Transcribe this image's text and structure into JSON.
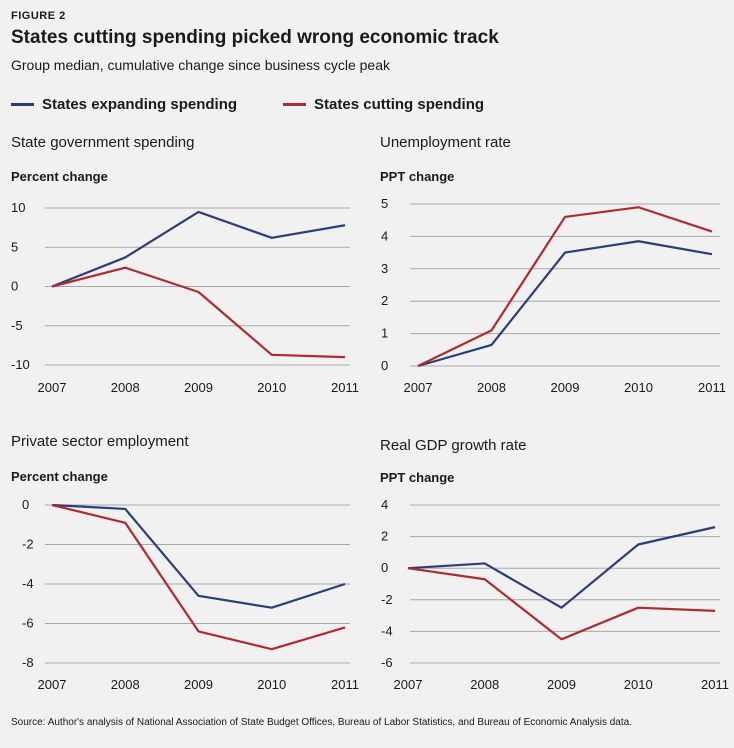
{
  "header": {
    "figure_label": "FIGURE 2",
    "title": "States cutting spending picked wrong economic track",
    "subtitle": "Group median, cumulative change since business cycle peak"
  },
  "legend": [
    {
      "label": "States expanding spending",
      "color": "#2b3e7a"
    },
    {
      "label": "States cutting spending",
      "color": "#b02a30"
    }
  ],
  "colors": {
    "expanding": "#2b3e7a",
    "cutting": "#b02a30",
    "grid": "#a9a9a9"
  },
  "source": "Source: Author's analysis of National Association of State Budget Offices, Bureau of Labor Statistics, and Bureau of Economic Analysis data.",
  "chart_data": [
    {
      "type": "line",
      "title": "State government spending",
      "ylabel": "Percent change",
      "categories": [
        "2007",
        "2008",
        "2009",
        "2010",
        "2011"
      ],
      "ylim": [
        -10,
        10
      ],
      "yticks": [
        "10",
        "5",
        "0",
        "-5",
        "-10"
      ],
      "series": [
        {
          "name": "States expanding spending",
          "values": [
            0,
            3.7,
            9.5,
            6.2,
            7.8
          ]
        },
        {
          "name": "States cutting spending",
          "values": [
            0,
            2.4,
            -0.7,
            -8.7,
            -9.0
          ]
        }
      ]
    },
    {
      "type": "line",
      "title": "Unemployment rate",
      "ylabel": "PPT change",
      "categories": [
        "2007",
        "2008",
        "2009",
        "2010",
        "2011"
      ],
      "ylim": [
        0,
        5
      ],
      "yticks": [
        "5",
        "4",
        "3",
        "2",
        "1",
        "0"
      ],
      "series": [
        {
          "name": "States expanding spending",
          "values": [
            0,
            0.65,
            3.5,
            3.85,
            3.45
          ]
        },
        {
          "name": "States cutting spending",
          "values": [
            0,
            1.1,
            4.6,
            4.9,
            4.15
          ]
        }
      ]
    },
    {
      "type": "line",
      "title": "Private sector employment",
      "ylabel": "Percent change",
      "categories": [
        "2007",
        "2008",
        "2009",
        "2010",
        "2011"
      ],
      "ylim": [
        -8,
        0
      ],
      "yticks": [
        "0",
        "-2",
        "-4",
        "-6",
        "-8"
      ],
      "series": [
        {
          "name": "States expanding spending",
          "values": [
            0,
            -0.2,
            -4.6,
            -5.2,
            -4.0
          ]
        },
        {
          "name": "States cutting spending",
          "values": [
            0,
            -0.9,
            -6.4,
            -7.3,
            -6.2
          ]
        }
      ]
    },
    {
      "type": "line",
      "title": "Real GDP growth rate",
      "ylabel": "PPT change",
      "categories": [
        "2007",
        "2008",
        "2009",
        "2010",
        "2011"
      ],
      "ylim": [
        -6,
        4
      ],
      "yticks": [
        "4",
        "2",
        "0",
        "-2",
        "-4",
        "-6"
      ],
      "series": [
        {
          "name": "States expanding spending",
          "values": [
            0,
            0.3,
            -2.5,
            1.5,
            2.6
          ]
        },
        {
          "name": "States cutting spending",
          "values": [
            0,
            -0.7,
            -4.5,
            -2.5,
            -2.7
          ]
        }
      ]
    }
  ]
}
